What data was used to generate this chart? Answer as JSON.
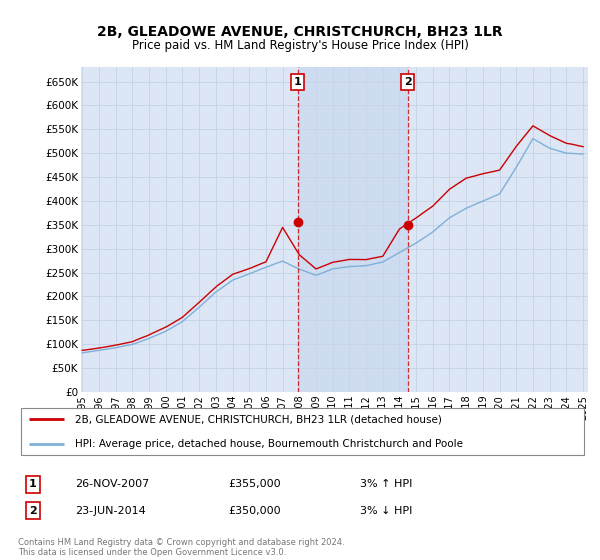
{
  "title": "2B, GLEADOWE AVENUE, CHRISTCHURCH, BH23 1LR",
  "subtitle": "Price paid vs. HM Land Registry's House Price Index (HPI)",
  "ylabel_ticks": [
    "£0",
    "£50K",
    "£100K",
    "£150K",
    "£200K",
    "£250K",
    "£300K",
    "£350K",
    "£400K",
    "£450K",
    "£500K",
    "£550K",
    "£600K",
    "£650K"
  ],
  "ytick_values": [
    0,
    50000,
    100000,
    150000,
    200000,
    250000,
    300000,
    350000,
    400000,
    450000,
    500000,
    550000,
    600000,
    650000
  ],
  "ylim": [
    0,
    680000
  ],
  "xlim_start": 1995.0,
  "xlim_end": 2025.3,
  "background_color": "#ffffff",
  "plot_bg_color": "#dce6f5",
  "grid_color": "#c8d4e8",
  "shade_color": "#c8d8f0",
  "legend_entry1": "2B, GLEADOWE AVENUE, CHRISTCHURCH, BH23 1LR (detached house)",
  "legend_entry2": "HPI: Average price, detached house, Bournemouth Christchurch and Poole",
  "sale1_date": "26-NOV-2007",
  "sale1_price": 355000,
  "sale1_hpi": "3% ↑ HPI",
  "sale2_date": "23-JUN-2014",
  "sale2_price": 350000,
  "sale2_hpi": "3% ↓ HPI",
  "footer": "Contains HM Land Registry data © Crown copyright and database right 2024.\nThis data is licensed under the Open Government Licence v3.0.",
  "line_color_price": "#cc0000",
  "line_color_hpi": "#7fb0d8",
  "marker_color_price": "#cc0000",
  "sale1_x": 2007.9,
  "sale2_x": 2014.5
}
